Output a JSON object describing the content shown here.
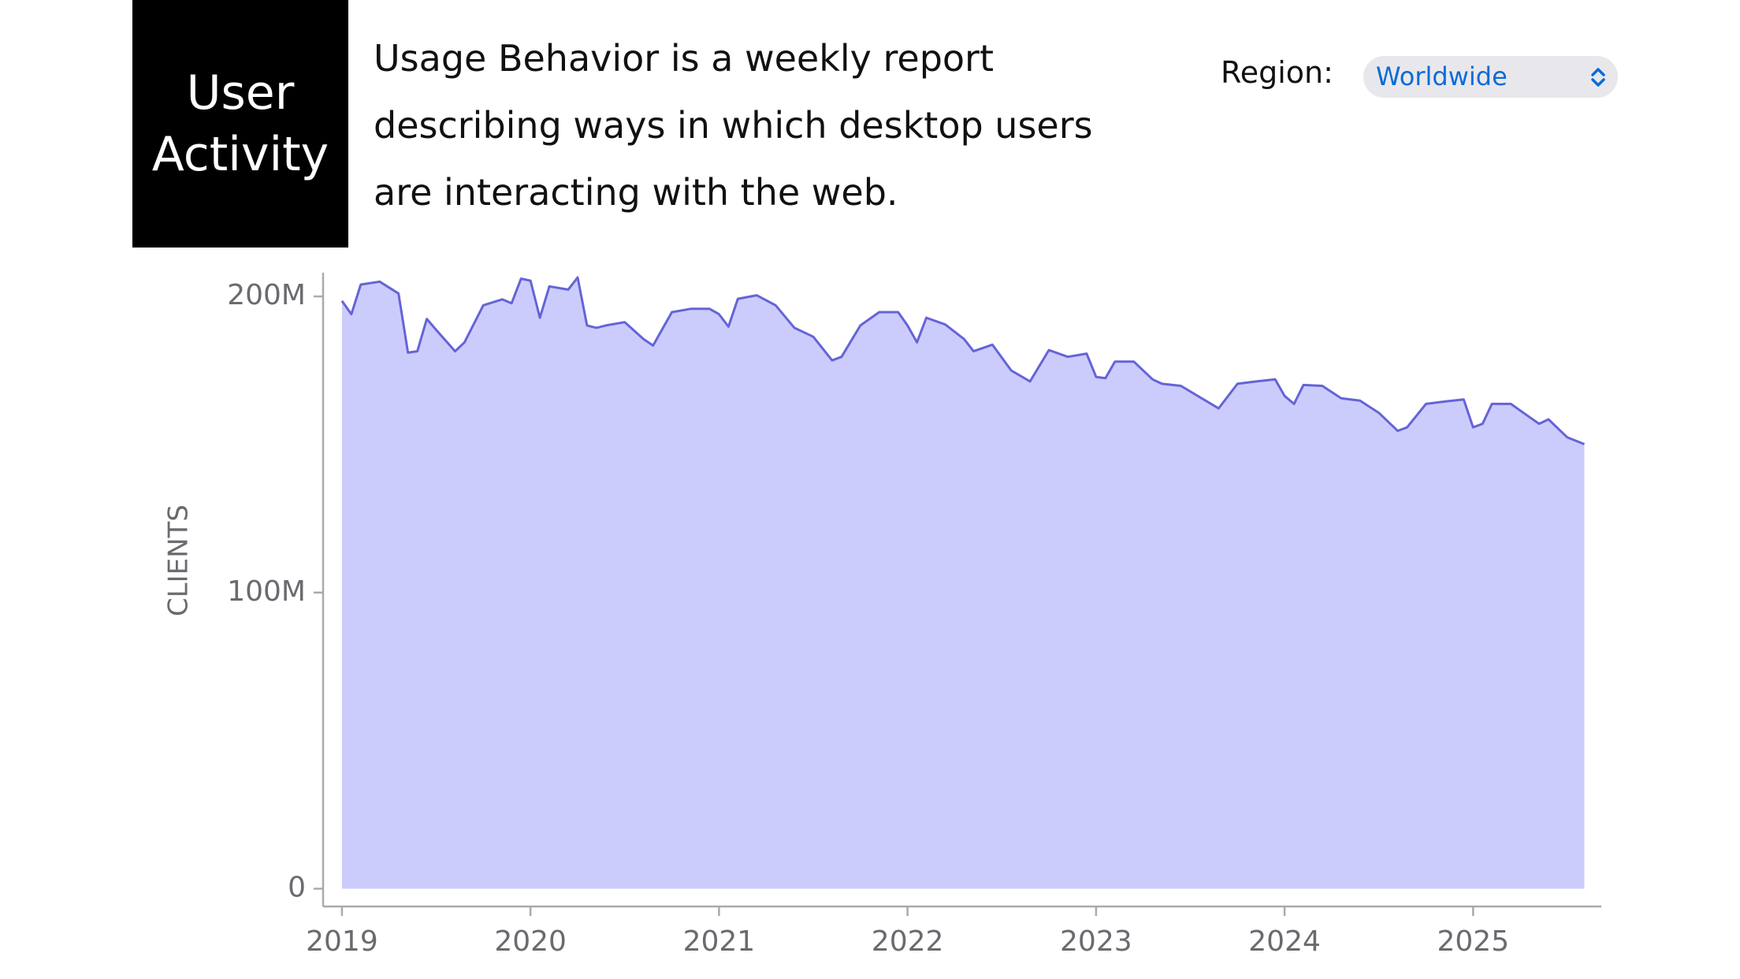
{
  "header": {
    "title_lines": [
      "User",
      "Activity"
    ],
    "description_lines": [
      "Usage Behavior is a weekly report",
      "describing ways in which desktop users",
      "are interacting with the web."
    ],
    "region_label": "Region:",
    "region_value": "Worldwide"
  },
  "chart_data": {
    "type": "area",
    "ylabel": "CLIENTS",
    "color": "#ccccfc",
    "line_color": "#6464d8",
    "x": [
      2019.0,
      2019.05,
      2019.1,
      2019.2,
      2019.3,
      2019.35,
      2019.4,
      2019.45,
      2019.5,
      2019.6,
      2019.65,
      2019.75,
      2019.85,
      2019.9,
      2019.95,
      2020.0,
      2020.05,
      2020.1,
      2020.2,
      2020.25,
      2020.3,
      2020.35,
      2020.4,
      2020.5,
      2020.6,
      2020.65,
      2020.75,
      2020.85,
      2020.95,
      2021.0,
      2021.05,
      2021.1,
      2021.2,
      2021.3,
      2021.4,
      2021.5,
      2021.6,
      2021.65,
      2021.75,
      2021.85,
      2021.95,
      2022.0,
      2022.05,
      2022.1,
      2022.2,
      2022.3,
      2022.35,
      2022.45,
      2022.55,
      2022.65,
      2022.75,
      2022.85,
      2022.95,
      2023.0,
      2023.05,
      2023.1,
      2023.2,
      2023.3,
      2023.35,
      2023.45,
      2023.55,
      2023.65,
      2023.75,
      2023.85,
      2023.95,
      2024.0,
      2024.05,
      2024.1,
      2024.2,
      2024.3,
      2024.4,
      2024.5,
      2024.6,
      2024.65,
      2024.75,
      2024.85,
      2024.95,
      2025.0,
      2025.05,
      2025.1,
      2025.2,
      2025.3,
      2025.35,
      2025.4,
      2025.5,
      2025.59
    ],
    "values": [
      198500000,
      194000000,
      204000000,
      205000000,
      201000000,
      181000000,
      181500000,
      192400000,
      188700000,
      181500000,
      184500000,
      197000000,
      199000000,
      197700000,
      206000000,
      205300000,
      192800000,
      203400000,
      202300000,
      206400000,
      190200000,
      189400000,
      190200000,
      191300000,
      185600000,
      183400000,
      194700000,
      195800000,
      195800000,
      194000000,
      189800000,
      199200000,
      200400000,
      197000000,
      189400000,
      186400000,
      178400000,
      179600000,
      190200000,
      194700000,
      194700000,
      190200000,
      184500000,
      192800000,
      190500000,
      185600000,
      181500000,
      183700000,
      175000000,
      171300000,
      181900000,
      179600000,
      180700000,
      172800000,
      172400000,
      178000000,
      178000000,
      172000000,
      170500000,
      169800000,
      166000000,
      162200000,
      170500000,
      171300000,
      172000000,
      166400000,
      163700000,
      170100000,
      169800000,
      165600000,
      164800000,
      160700000,
      154600000,
      155800000,
      163700000,
      164500000,
      165200000,
      155800000,
      157000000,
      163700000,
      163700000,
      159200000,
      157000000,
      158500000,
      152400000,
      150100000
    ],
    "xlim": [
      2018.9,
      2025.68
    ],
    "xticks": [
      2019,
      2020,
      2021,
      2022,
      2023,
      2024,
      2025
    ],
    "ylim": [
      -6000000,
      208000000
    ],
    "yticks": [
      0,
      {
        "value": 100000000,
        "label": "100M"
      },
      {
        "value": 200000000,
        "label": "200M"
      }
    ]
  }
}
